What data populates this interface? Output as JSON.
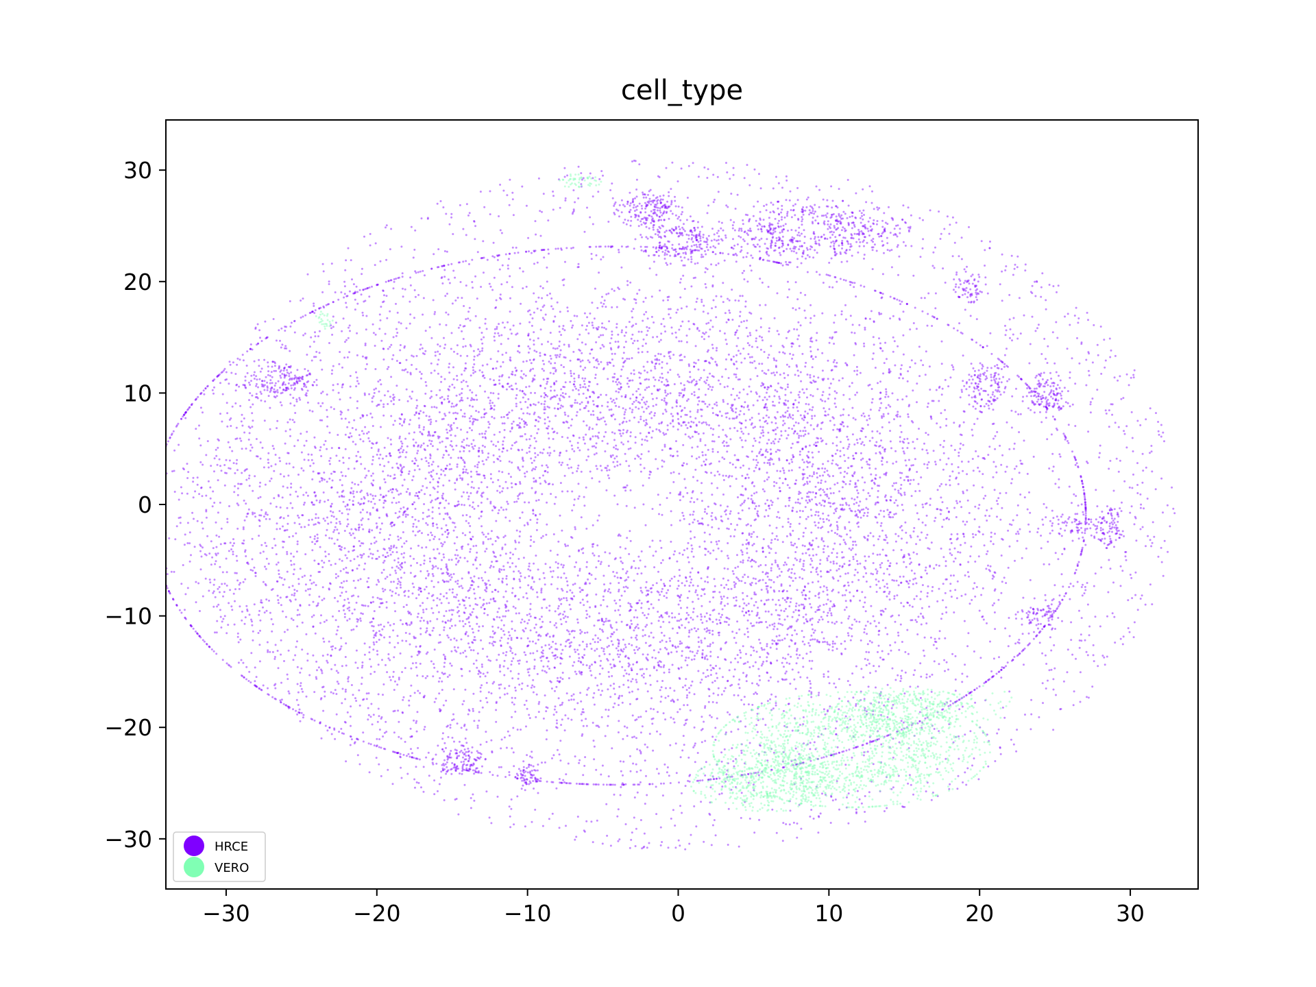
{
  "chart_data": {
    "type": "scatter",
    "title": "cell_type",
    "xlabel": "",
    "ylabel": "",
    "xlim": [
      -34,
      34.5
    ],
    "ylim": [
      -34.5,
      34.5
    ],
    "xticks": [
      -30,
      -20,
      -10,
      0,
      10,
      20,
      30
    ],
    "yticks": [
      -30,
      -20,
      -10,
      0,
      10,
      20,
      30
    ],
    "grid": false,
    "legend_position": "lower-left",
    "series": [
      {
        "name": "HRCE",
        "color": "#7f00ff",
        "regions": [
          {
            "shape": "ellipse",
            "cx": -4,
            "cy": -1,
            "rx": 27,
            "ry": 21,
            "count": 9000
          },
          {
            "shape": "ellipse",
            "cx": 0,
            "cy": 0,
            "rx": 33,
            "ry": 31,
            "count": 1400,
            "spread": "ring"
          },
          {
            "shape": "ellipse",
            "cx": 9,
            "cy": 24.5,
            "rx": 5.5,
            "ry": 2.5,
            "count": 500
          },
          {
            "shape": "ellipse",
            "cx": -2,
            "cy": 26.5,
            "rx": 2,
            "ry": 1.5,
            "count": 180
          },
          {
            "shape": "ellipse",
            "cx": 0,
            "cy": 23.5,
            "rx": 2.5,
            "ry": 1.8,
            "count": 200
          },
          {
            "shape": "ellipse",
            "cx": -26.5,
            "cy": 11,
            "rx": 2,
            "ry": 1.6,
            "count": 160
          },
          {
            "shape": "ellipse",
            "cx": 24.5,
            "cy": 10,
            "rx": 1.2,
            "ry": 1.6,
            "count": 120
          },
          {
            "shape": "ellipse",
            "cx": 20.5,
            "cy": 10.5,
            "rx": 1.2,
            "ry": 2,
            "count": 110
          },
          {
            "shape": "ellipse",
            "cx": 28.5,
            "cy": -2,
            "rx": 1,
            "ry": 2,
            "count": 90
          },
          {
            "shape": "ellipse",
            "cx": -14.5,
            "cy": -23,
            "rx": 1.5,
            "ry": 1.2,
            "count": 110
          },
          {
            "shape": "ellipse",
            "cx": -10,
            "cy": -24.5,
            "rx": 0.7,
            "ry": 1,
            "count": 60
          },
          {
            "shape": "ellipse",
            "cx": 19.5,
            "cy": 19.5,
            "rx": 1,
            "ry": 1.2,
            "count": 60
          },
          {
            "shape": "ellipse",
            "cx": 26.5,
            "cy": -2,
            "rx": 1.5,
            "ry": 1,
            "count": 50
          },
          {
            "shape": "ellipse",
            "cx": 24,
            "cy": -10,
            "rx": 1.4,
            "ry": 1,
            "count": 60
          }
        ]
      },
      {
        "name": "VERO",
        "color": "#80ffb4",
        "regions": [
          {
            "shape": "ellipse",
            "cx": 11.5,
            "cy": -22,
            "rx": 8,
            "ry": 4.5,
            "count": 1400
          },
          {
            "shape": "ellipse",
            "cx": 6,
            "cy": -25,
            "rx": 4.5,
            "ry": 2.2,
            "count": 450
          },
          {
            "shape": "ellipse",
            "cx": 15,
            "cy": -18.5,
            "rx": 4,
            "ry": 1.8,
            "count": 350
          },
          {
            "shape": "ellipse",
            "cx": -6.5,
            "cy": 29,
            "rx": 1.2,
            "ry": 0.6,
            "count": 45
          },
          {
            "shape": "ellipse",
            "cx": -23.5,
            "cy": 16.5,
            "rx": 0.6,
            "ry": 0.8,
            "count": 25
          },
          {
            "shape": "ellipse",
            "cx": 20,
            "cy": -18,
            "rx": 2,
            "ry": 1.5,
            "count": 30
          }
        ]
      }
    ]
  }
}
